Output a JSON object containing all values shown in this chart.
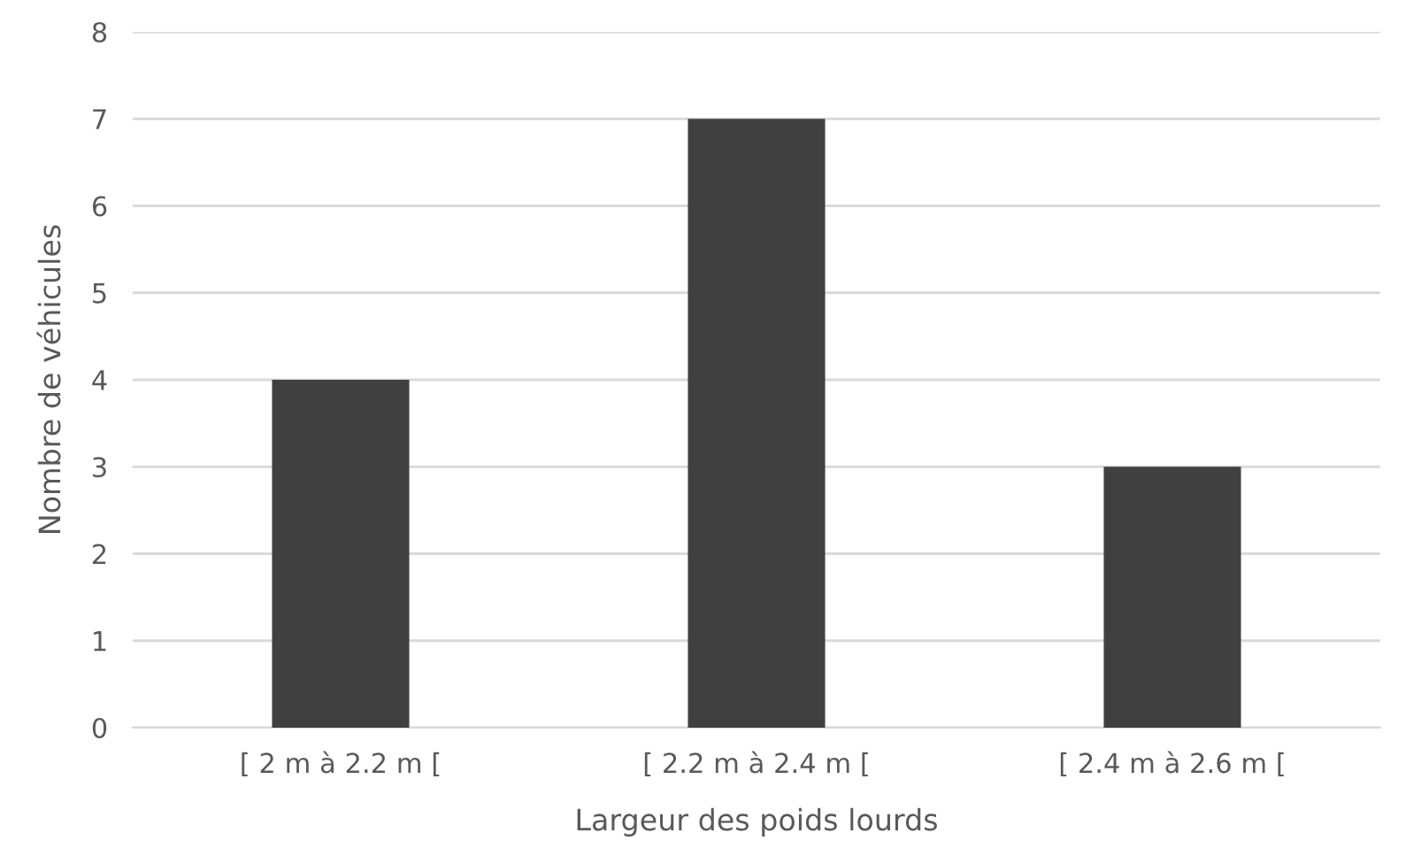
{
  "chart_data": {
    "type": "bar",
    "xlabel": "Largeur des poids lourds",
    "ylabel": "Nombre de véhicules",
    "categories": [
      "[ 2 m à 2.2 m [",
      "[ 2.2 m à 2.4 m [",
      "[ 2.4 m à 2.6 m ["
    ],
    "values": [
      4,
      7,
      3
    ],
    "color": "#404040",
    "ylim": [
      0,
      8
    ],
    "yticks": [
      0,
      1,
      2,
      3,
      4,
      5,
      6,
      7,
      8
    ],
    "grid": "y"
  }
}
